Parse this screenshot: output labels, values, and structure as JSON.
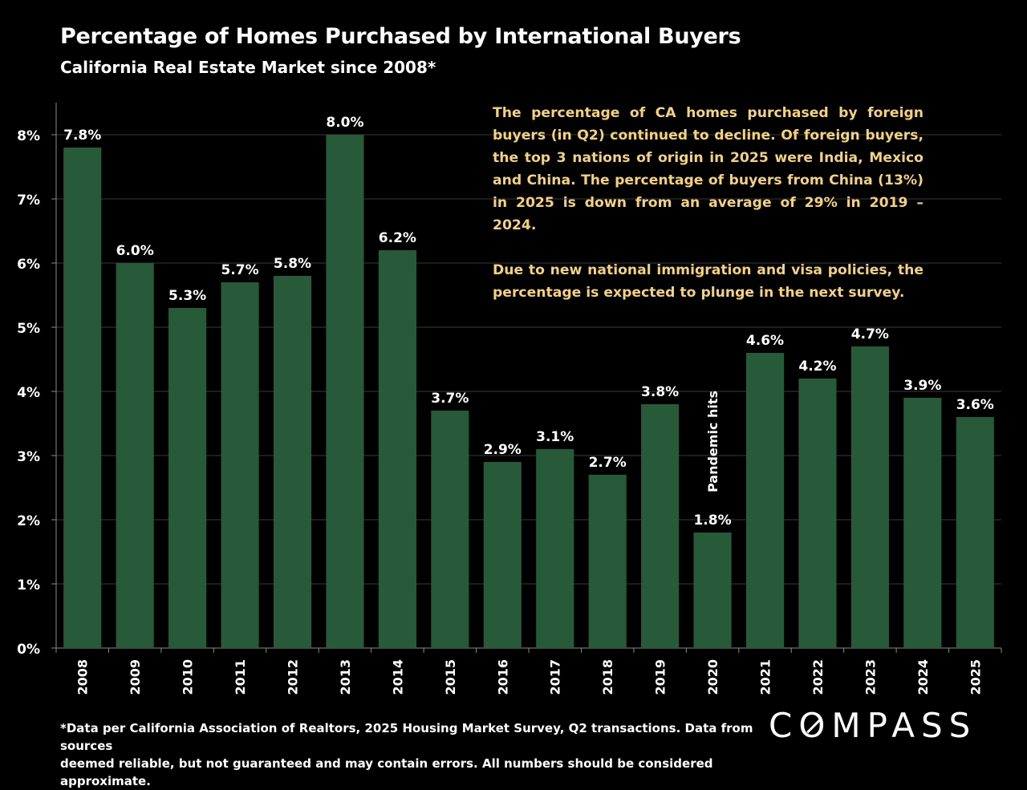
{
  "header": {
    "title": "Percentage of Homes Purchased by International Buyers",
    "subtitle": "California Real Estate Market since 2008*"
  },
  "annotation": {
    "paragraph1": "The percentage of CA homes purchased by foreign buyers (in Q2) continued to decline. Of foreign buyers, the top 3 nations of origin in 2025 were India, Mexico and China. The percentage of buyers from China (13%) in 2025 is down from an average of 29% in 2019 – 2024.",
    "paragraph2": "Due to new national immigration and visa policies, the percentage is expected to plunge in the next survey."
  },
  "footnote": {
    "line1": "*Data per California Association of Realtors, 2025 Housing Market Survey, Q2 transactions. Data from sources",
    "line2": "deemed reliable, but not guaranteed and may contain errors. All numbers should be considered approximate."
  },
  "logo": {
    "text_before": "C",
    "text_o": "O",
    "text_after": "MPASS"
  },
  "colors": {
    "bar": "#275a38",
    "annotation": "#f5d27a",
    "background": "#000000",
    "gridline": "#3a3a3a"
  },
  "chart_data": {
    "type": "bar",
    "title": "Percentage of Homes Purchased by International Buyers",
    "subtitle": "California Real Estate Market since 2008*",
    "categories": [
      "2008",
      "2009",
      "2010",
      "2011",
      "2012",
      "2013",
      "2014",
      "2015",
      "2016",
      "2017",
      "2018",
      "2019",
      "2020",
      "2021",
      "2022",
      "2023",
      "2024",
      "2025"
    ],
    "values": [
      7.8,
      6.0,
      5.3,
      5.7,
      5.8,
      8.0,
      6.2,
      3.7,
      2.9,
      3.1,
      2.7,
      3.8,
      1.8,
      4.6,
      4.2,
      4.7,
      3.9,
      3.6
    ],
    "value_labels": [
      "7.8%",
      "6.0%",
      "5.3%",
      "5.7%",
      "5.8%",
      "8.0%",
      "6.2%",
      "3.7%",
      "2.9%",
      "3.1%",
      "2.7%",
      "3.8%",
      "1.8%",
      "4.6%",
      "4.2%",
      "4.7%",
      "3.9%",
      "3.6%"
    ],
    "ylim": [
      0,
      8.5
    ],
    "yticks": [
      0,
      1,
      2,
      3,
      4,
      5,
      6,
      7,
      8
    ],
    "ytick_labels": [
      "0%",
      "1%",
      "2%",
      "3%",
      "4%",
      "5%",
      "6%",
      "7%",
      "8%"
    ],
    "xlabel": "",
    "ylabel": "",
    "grid": true,
    "annotations": [
      {
        "category": "2020",
        "text": "Pandemic hits",
        "orientation": "vertical"
      }
    ]
  }
}
